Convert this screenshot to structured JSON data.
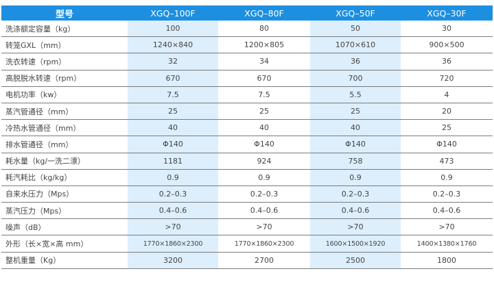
{
  "header": [
    "型号",
    "XGQ–100F",
    "XGQ–80F",
    "XGQ–50F",
    "XGQ–30F"
  ],
  "rows": [
    [
      "洗涤额定容量（kg）",
      "100",
      "80",
      "50",
      "30"
    ],
    [
      "转笼GXL（mm）",
      "1240×840",
      "1200×805",
      "1070×610",
      "900×500"
    ],
    [
      "洗衣转速（rpm）",
      "32",
      "34",
      "36",
      "36"
    ],
    [
      "高脱脱水转速（rpm）",
      "670",
      "670",
      "700",
      "720"
    ],
    [
      "电机功率（kw）",
      "7.5",
      "7.5",
      "5.5",
      "4"
    ],
    [
      "蒸汽管通径（mm）",
      "25",
      "25",
      "25",
      "20"
    ],
    [
      "冷热水管通径（mm）",
      "40",
      "40",
      "40",
      "25"
    ],
    [
      "排水管通径（mm）",
      "Φ140",
      "Φ140",
      "Φ140",
      "Φ140"
    ],
    [
      "耗水量（kg/一洗二漂）",
      "1181",
      "924",
      "758",
      "473"
    ],
    [
      "耗汽耗比（kg/kg）",
      "0.9",
      "0.9",
      "0.9",
      "0.9"
    ],
    [
      "自来水压力（Mps）",
      "0.2–0.3",
      "0.2–0.3",
      "0.2–0.3",
      "0.2–0.3"
    ],
    [
      "蒸汽压力（Mps）",
      "0.4–0.6",
      "0.4–0.6",
      "0.4–0.6",
      "0.4–0.6"
    ],
    [
      "噪声（dB）",
      ">70",
      ">70",
      ">70",
      ">70"
    ],
    [
      "外形（长×宽×高 mm）",
      "1770×1860×2300",
      "1770×1860×2300",
      "1600×1500×1920",
      "1400×1380×1760"
    ],
    [
      "整机重量（Kg）",
      "3200",
      "2700",
      "2500",
      "1800"
    ]
  ],
  "colors": {
    "header_bg": "#1d8fe0",
    "highlight_col_bg": "#ddeefc",
    "text": "#444444",
    "rule": "#7a7a7a"
  }
}
